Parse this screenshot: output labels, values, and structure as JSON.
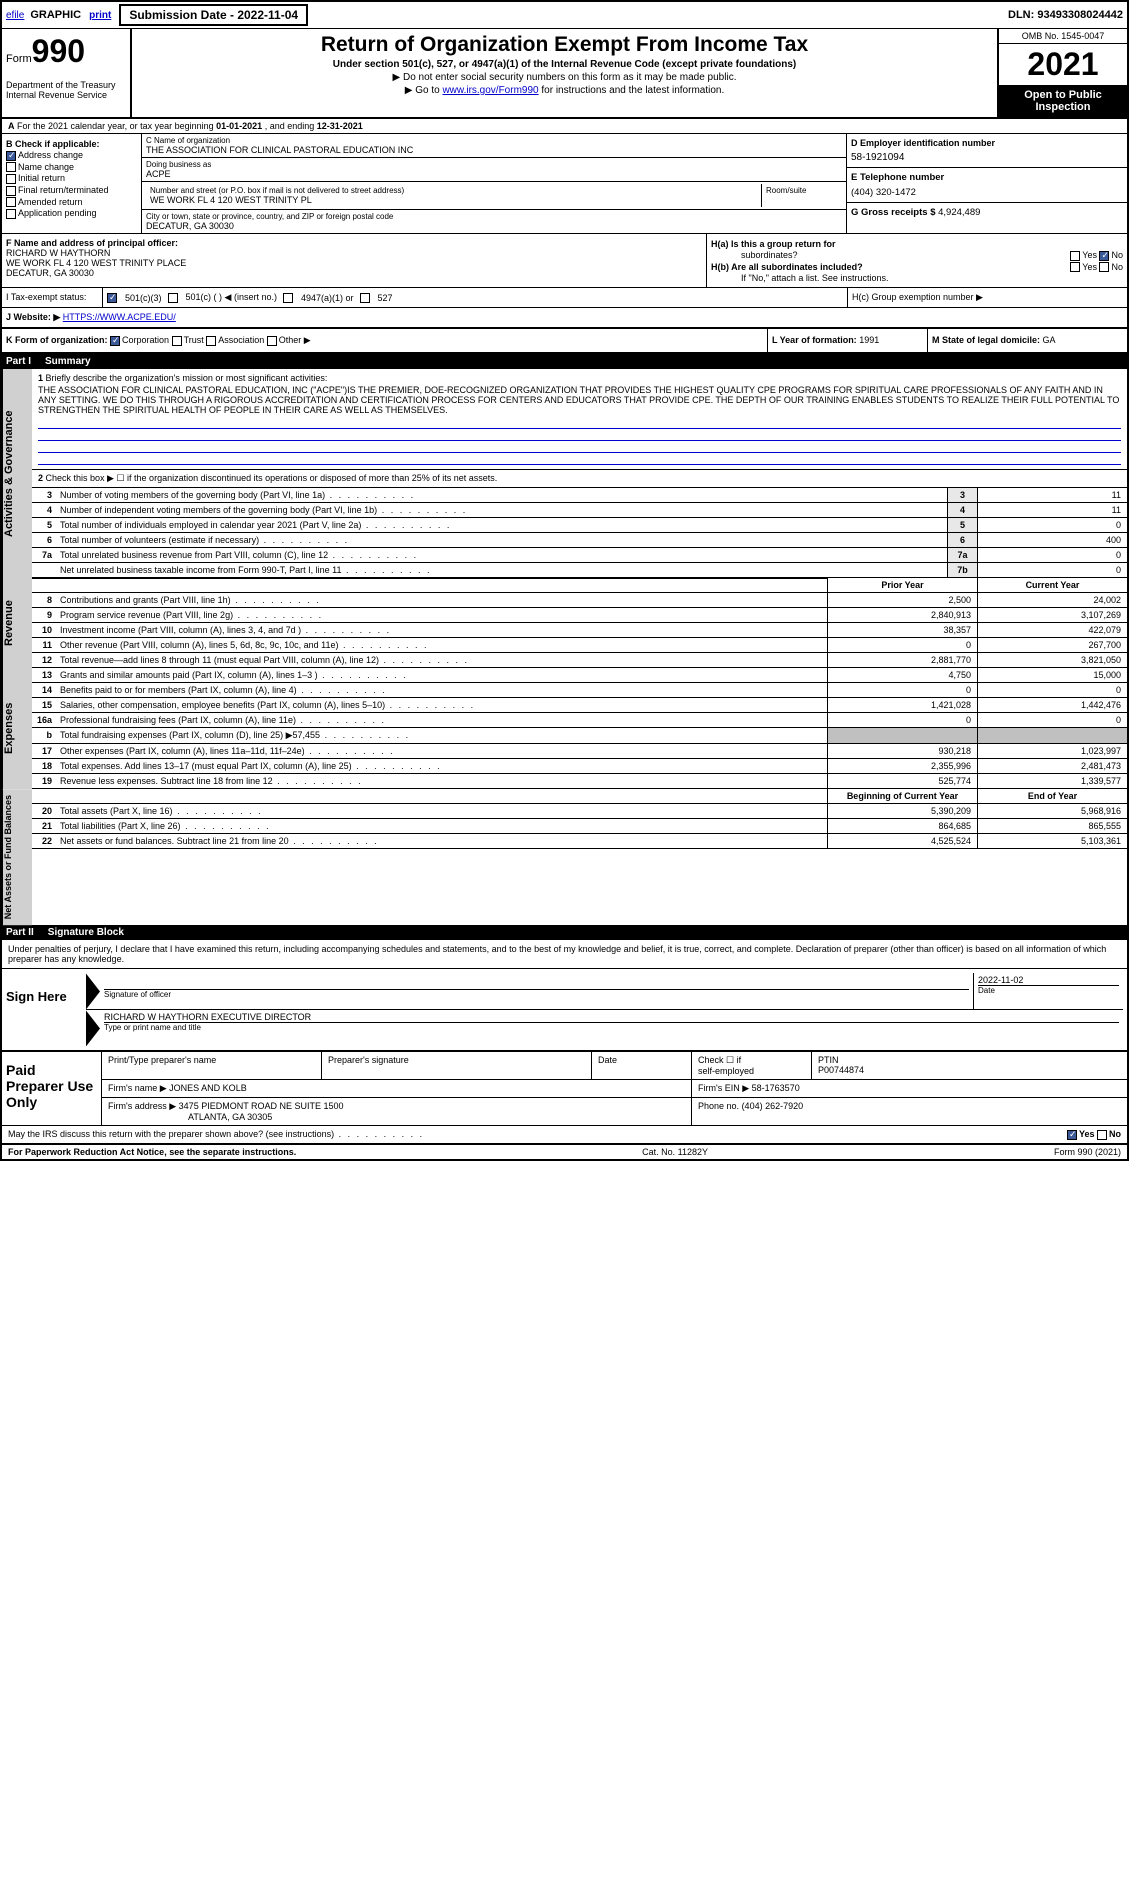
{
  "topbar": {
    "efile": "efile",
    "graphic": "GRAPHIC",
    "print": "print",
    "sub_date_label": "Submission Date - 2022-11-04",
    "dln": "DLN: 93493308024442"
  },
  "header": {
    "form_label": "Form",
    "form_num": "990",
    "dept": "Department of the Treasury\nInternal Revenue Service",
    "title": "Return of Organization Exempt From Income Tax",
    "subtitle": "Under section 501(c), 527, or 4947(a)(1) of the Internal Revenue Code (except private foundations)",
    "sub2": "▶ Do not enter social security numbers on this form as it may be made public.",
    "sub3_pre": "▶ Go to ",
    "sub3_link": "www.irs.gov/Form990",
    "sub3_post": " for instructions and the latest information.",
    "omb": "OMB No. 1545-0047",
    "year": "2021",
    "open": "Open to Public Inspection"
  },
  "row_a": {
    "a": "A",
    "text_pre": "For the 2021 calendar year, or tax year beginning ",
    "begin": "01-01-2021",
    "mid": " , and ending ",
    "end": "12-31-2021"
  },
  "block_b": {
    "hdr": "B Check if applicable:",
    "items": [
      "Address change",
      "Name change",
      "Initial return",
      "Final return/terminated",
      "Amended return",
      "Application pending"
    ],
    "checked": [
      true,
      false,
      false,
      false,
      false,
      false
    ]
  },
  "block_c": {
    "name_lbl": "C Name of organization",
    "name": "THE ASSOCIATION FOR CLINICAL PASTORAL EDUCATION INC",
    "dba_lbl": "Doing business as",
    "dba": "ACPE",
    "street_lbl": "Number and street (or P.O. box if mail is not delivered to street address)",
    "street": "WE WORK FL 4 120 WEST TRINITY PL",
    "room_lbl": "Room/suite",
    "city_lbl": "City or town, state or province, country, and ZIP or foreign postal code",
    "city": "DECATUR, GA  30030"
  },
  "block_d": {
    "lbl": "D Employer identification number",
    "val": "58-1921094"
  },
  "block_e": {
    "lbl": "E Telephone number",
    "val": "(404) 320-1472"
  },
  "block_g": {
    "lbl": "G Gross receipts $",
    "val": "4,924,489"
  },
  "block_f": {
    "lbl": "F  Name and address of principal officer:",
    "name": "RICHARD W HAYTHORN",
    "addr1": "WE WORK FL 4 120 WEST TRINITY PLACE",
    "addr2": "DECATUR, GA  30030"
  },
  "block_h": {
    "ha": "H(a)  Is this a group return for",
    "ha2": "subordinates?",
    "hb": "H(b)  Are all subordinates included?",
    "hb2": "If \"No,\" attach a list. See instructions.",
    "hc": "H(c)  Group exemption number ▶",
    "yes": "Yes",
    "no": "No"
  },
  "row_i": {
    "lbl": "I   Tax-exempt status:",
    "o1": "501(c)(3)",
    "o2": "501(c) (  )  ◀ (insert no.)",
    "o3": "4947(a)(1) or",
    "o4": "527"
  },
  "row_j": {
    "lbl": "J   Website: ▶",
    "val": "HTTPS://WWW.ACPE.EDU/"
  },
  "row_k": {
    "lbl": "K Form of organization:",
    "o1": "Corporation",
    "o2": "Trust",
    "o3": "Association",
    "o4": "Other ▶"
  },
  "row_l": {
    "lbl": "L Year of formation:",
    "val": "1991"
  },
  "row_m": {
    "lbl": "M State of legal domicile:",
    "val": "GA"
  },
  "part1": {
    "num": "Part I",
    "title": "Summary"
  },
  "mission": {
    "num": "1",
    "lbl": "Briefly describe the organization's mission or most significant activities:",
    "text": "THE ASSOCIATION FOR CLINICAL PASTORAL EDUCATION, INC (\"ACPE\")IS THE PREMIER, DOE-RECOGNIZED ORGANIZATION THAT PROVIDES THE HIGHEST QUALITY CPE PROGRAMS FOR SPIRITUAL CARE PROFESSIONALS OF ANY FAITH AND IN ANY SETTING. WE DO THIS THROUGH A RIGOROUS ACCREDITATION AND CERTIFICATION PROCESS FOR CENTERS AND EDUCATORS THAT PROVIDE CPE. THE DEPTH OF OUR TRAINING ENABLES STUDENTS TO REALIZE THEIR FULL POTENTIAL TO STRENGTHEN THE SPIRITUAL HEALTH OF PEOPLE IN THEIR CARE AS WELL AS THEMSELVES."
  },
  "line2": {
    "num": "2",
    "text": "Check this box ▶ ☐  if the organization discontinued its operations or disposed of more than 25% of its net assets."
  },
  "gov_lines": [
    {
      "n": "3",
      "d": "Number of voting members of the governing body (Part VI, line 1a)",
      "b": "3",
      "v": "11"
    },
    {
      "n": "4",
      "d": "Number of independent voting members of the governing body (Part VI, line 1b)",
      "b": "4",
      "v": "11"
    },
    {
      "n": "5",
      "d": "Total number of individuals employed in calendar year 2021 (Part V, line 2a)",
      "b": "5",
      "v": "0"
    },
    {
      "n": "6",
      "d": "Total number of volunteers (estimate if necessary)",
      "b": "6",
      "v": "400"
    },
    {
      "n": "7a",
      "d": "Total unrelated business revenue from Part VIII, column (C), line 12",
      "b": "7a",
      "v": "0"
    },
    {
      "n": "",
      "d": "Net unrelated business taxable income from Form 990-T, Part I, line 11",
      "b": "7b",
      "v": "0"
    }
  ],
  "col_hdr": {
    "prior": "Prior Year",
    "current": "Current Year",
    "boy": "Beginning of Current Year",
    "eoy": "End of Year"
  },
  "rev_lines": [
    {
      "n": "8",
      "d": "Contributions and grants (Part VIII, line 1h)",
      "p": "2,500",
      "c": "24,002"
    },
    {
      "n": "9",
      "d": "Program service revenue (Part VIII, line 2g)",
      "p": "2,840,913",
      "c": "3,107,269"
    },
    {
      "n": "10",
      "d": "Investment income (Part VIII, column (A), lines 3, 4, and 7d )",
      "p": "38,357",
      "c": "422,079"
    },
    {
      "n": "11",
      "d": "Other revenue (Part VIII, column (A), lines 5, 6d, 8c, 9c, 10c, and 11e)",
      "p": "0",
      "c": "267,700"
    },
    {
      "n": "12",
      "d": "Total revenue—add lines 8 through 11 (must equal Part VIII, column (A), line 12)",
      "p": "2,881,770",
      "c": "3,821,050"
    }
  ],
  "exp_lines": [
    {
      "n": "13",
      "d": "Grants and similar amounts paid (Part IX, column (A), lines 1–3 )",
      "p": "4,750",
      "c": "15,000"
    },
    {
      "n": "14",
      "d": "Benefits paid to or for members (Part IX, column (A), line 4)",
      "p": "0",
      "c": "0"
    },
    {
      "n": "15",
      "d": "Salaries, other compensation, employee benefits (Part IX, column (A), lines 5–10)",
      "p": "1,421,028",
      "c": "1,442,476"
    },
    {
      "n": "16a",
      "d": "Professional fundraising fees (Part IX, column (A), line 11e)",
      "p": "0",
      "c": "0"
    },
    {
      "n": "b",
      "d": "Total fundraising expenses (Part IX, column (D), line 25) ▶57,455",
      "p": "",
      "c": "",
      "shaded": true
    },
    {
      "n": "17",
      "d": "Other expenses (Part IX, column (A), lines 11a–11d, 11f–24e)",
      "p": "930,218",
      "c": "1,023,997"
    },
    {
      "n": "18",
      "d": "Total expenses. Add lines 13–17 (must equal Part IX, column (A), line 25)",
      "p": "2,355,996",
      "c": "2,481,473"
    },
    {
      "n": "19",
      "d": "Revenue less expenses. Subtract line 18 from line 12",
      "p": "525,774",
      "c": "1,339,577"
    }
  ],
  "net_lines": [
    {
      "n": "20",
      "d": "Total assets (Part X, line 16)",
      "p": "5,390,209",
      "c": "5,968,916"
    },
    {
      "n": "21",
      "d": "Total liabilities (Part X, line 26)",
      "p": "864,685",
      "c": "865,555"
    },
    {
      "n": "22",
      "d": "Net assets or fund balances. Subtract line 21 from line 20",
      "p": "4,525,524",
      "c": "5,103,361"
    }
  ],
  "part2": {
    "num": "Part II",
    "title": "Signature Block"
  },
  "penalty": "Under penalties of perjury, I declare that I have examined this return, including accompanying schedules and statements, and to the best of my knowledge and belief, it is true, correct, and complete. Declaration of preparer (other than officer) is based on all information of which preparer has any knowledge.",
  "sign": {
    "here": "Sign Here",
    "sig_lbl": "Signature of officer",
    "date_lbl": "Date",
    "date": "2022-11-02",
    "name": "RICHARD W HAYTHORN  EXECUTIVE DIRECTOR",
    "name_lbl": "Type or print name and title"
  },
  "prep": {
    "lbl": "Paid Preparer Use Only",
    "r1": {
      "c1": "Print/Type preparer's name",
      "c2": "Preparer's signature",
      "c3": "Date",
      "c4_a": "Check ☐ if",
      "c4_b": "self-employed",
      "c5_a": "PTIN",
      "c5_b": "P00744874"
    },
    "r2": {
      "c1": "Firm's name    ▶",
      "c1v": "JONES AND KOLB",
      "c2": "Firm's EIN ▶",
      "c2v": "58-1763570"
    },
    "r3": {
      "c1": "Firm's address ▶",
      "c1v": "3475 PIEDMONT ROAD NE SUITE 1500",
      "c1v2": "ATLANTA, GA  30305",
      "c2": "Phone no.",
      "c2v": "(404) 262-7920"
    }
  },
  "discuss": {
    "text": "May the IRS discuss this return with the preparer shown above? (see instructions)",
    "yes": "Yes",
    "no": "No"
  },
  "footer": {
    "l": "For Paperwork Reduction Act Notice, see the separate instructions.",
    "m": "Cat. No. 11282Y",
    "r": "Form 990 (2021)"
  },
  "vtabs": {
    "gov": "Activities & Governance",
    "rev": "Revenue",
    "exp": "Expenses",
    "net": "Net Assets or Fund Balances"
  }
}
